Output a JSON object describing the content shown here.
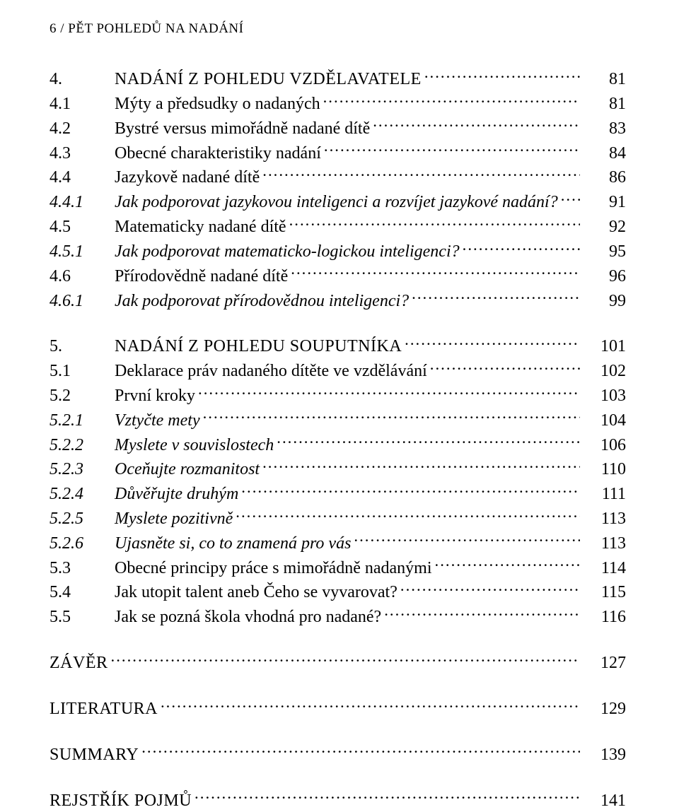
{
  "header": {
    "page_num": "6",
    "sep": " / ",
    "title": "PĚT POHLEDŮ NA NADÁNÍ"
  },
  "toc": [
    {
      "num": "4.",
      "title": "NADÁNÍ Z POHLEDU VZDĚLAVATELE",
      "page": "81",
      "italic": false,
      "chapter": true
    },
    {
      "num": "4.1",
      "title": "Mýty a předsudky o nadaných",
      "page": "81",
      "italic": false
    },
    {
      "num": "4.2",
      "title": "Bystré versus mimořádně nadané dítě",
      "page": "83",
      "italic": false
    },
    {
      "num": "4.3",
      "title": "Obecné charakteristiky nadání",
      "page": "84",
      "italic": false
    },
    {
      "num": "4.4",
      "title": "Jazykově nadané dítě",
      "page": "86",
      "italic": false
    },
    {
      "num": "4.4.1",
      "title": "Jak podporovat jazykovou inteligenci a rozvíjet jazykové nadání?",
      "page": "91",
      "italic": true
    },
    {
      "num": "4.5",
      "title": "Matematicky nadané dítě",
      "page": "92",
      "italic": false
    },
    {
      "num": "4.5.1",
      "title": "Jak podporovat matematicko-logickou inteligenci?",
      "page": "95",
      "italic": true
    },
    {
      "num": "4.6",
      "title": "Přírodovědně nadané dítě",
      "page": "96",
      "italic": false
    },
    {
      "num": "4.6.1",
      "title": "Jak podporovat přírodovědnou inteligenci?",
      "page": "99",
      "italic": true
    },
    {
      "gap": true
    },
    {
      "num": "5.",
      "title": "NADÁNÍ Z POHLEDU SOUPUTNÍKA",
      "page": "101",
      "italic": false,
      "chapter": true
    },
    {
      "num": "5.1",
      "title": "Deklarace práv nadaného dítěte ve vzdělávání",
      "page": "102",
      "italic": false
    },
    {
      "num": "5.2",
      "title": "První kroky",
      "page": "103",
      "italic": false
    },
    {
      "num": "5.2.1",
      "title": "Vztyčte mety",
      "page": "104",
      "italic": true
    },
    {
      "num": "5.2.2",
      "title": "Myslete v souvislostech",
      "page": "106",
      "italic": true
    },
    {
      "num": "5.2.3",
      "title": "Oceňujte rozmanitost",
      "page": "110",
      "italic": true
    },
    {
      "num": "5.2.4",
      "title": "Důvěřujte druhým",
      "page": "111",
      "italic": true
    },
    {
      "num": "5.2.5",
      "title": "Myslete pozitivně",
      "page": "113",
      "italic": true
    },
    {
      "num": "5.2.6",
      "title": "Ujasněte si, co to znamená pro vás",
      "page": "113",
      "italic": true
    },
    {
      "num": "5.3",
      "title": "Obecné principy práce s mimořádně nadanými",
      "page": "114",
      "italic": false
    },
    {
      "num": "5.4",
      "title": "Jak utopit talent aneb Čeho se vyvarovat?",
      "page": "115",
      "italic": false
    },
    {
      "num": "5.5",
      "title": "Jak se pozná škola vhodná pro nadané?",
      "page": "116",
      "italic": false
    }
  ],
  "standalone": [
    {
      "title": "ZÁVĚR",
      "page": "127"
    },
    {
      "title": "LITERATURA",
      "page": "129"
    },
    {
      "title": "SUMMARY",
      "page": "139"
    },
    {
      "title": "REJSTŘÍK POJMŮ",
      "page": "141"
    }
  ]
}
